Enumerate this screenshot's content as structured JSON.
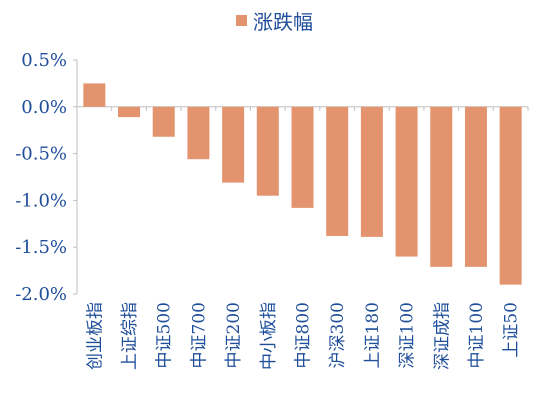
{
  "chart_data": {
    "type": "bar",
    "categories": [
      "创业板指",
      "上证综指",
      "中证500",
      "中证700",
      "中证200",
      "中小板指",
      "中证800",
      "沪深300",
      "上证180",
      "深证100",
      "深证成指",
      "中证100",
      "上证50"
    ],
    "series": [
      {
        "name": "涨跌幅",
        "values": [
          0.25,
          -0.11,
          -0.32,
          -0.56,
          -0.81,
          -0.95,
          -1.08,
          -1.38,
          -1.39,
          -1.6,
          -1.71,
          -1.71,
          -1.9
        ]
      }
    ],
    "ylim": [
      -2.0,
      0.5
    ],
    "yticks": [
      "0.5%",
      "0.0%",
      "-0.5%",
      "-1.0%",
      "-1.5%",
      "-2.0%"
    ],
    "ytick_values": [
      0.5,
      0.0,
      -0.5,
      -1.0,
      -1.5,
      -2.0
    ],
    "legend_position": "top-center",
    "grid": false,
    "colors": {
      "bar": "#e3946e",
      "text": "#1f4e9a",
      "axis": "#bfbfbf"
    }
  }
}
